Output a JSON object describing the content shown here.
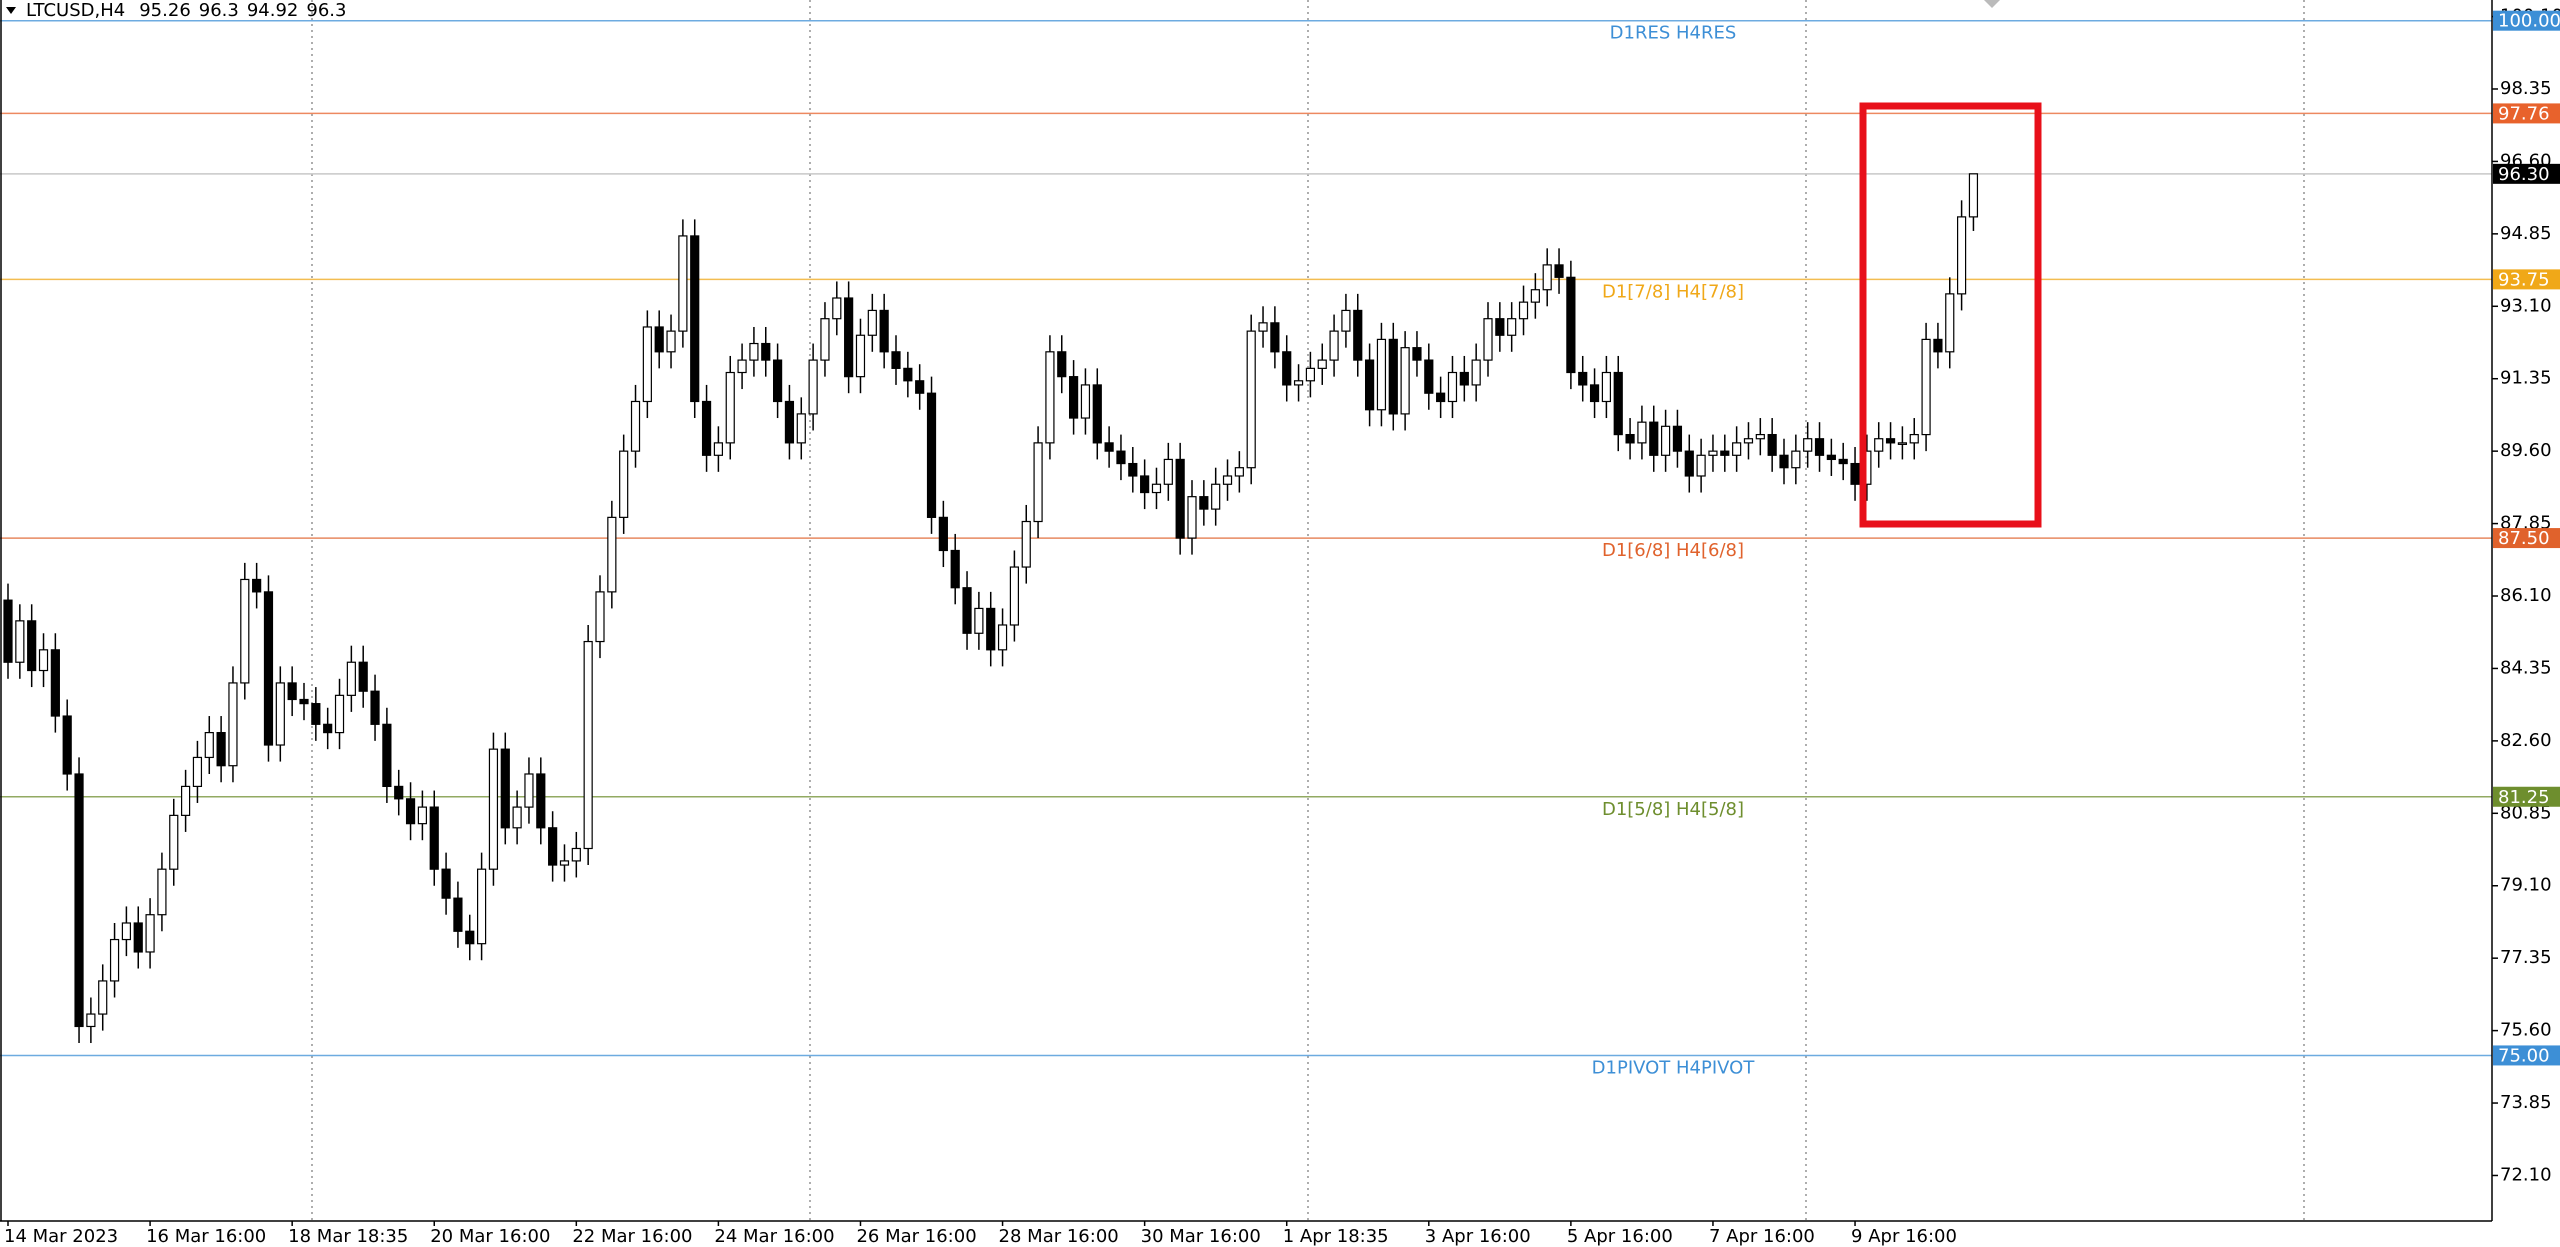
{
  "chart_data": {
    "type": "candlestick",
    "title": "LTCUSD,H4",
    "ylim": [
      71.0,
      100.5
    ],
    "yticks": [
      {
        "value": 72.1,
        "label": "72.10"
      },
      {
        "value": 73.85,
        "label": "73.85"
      },
      {
        "value": 75.6,
        "label": "75.60"
      },
      {
        "value": 77.35,
        "label": "77.35"
      },
      {
        "value": 79.1,
        "label": "79.10"
      },
      {
        "value": 80.85,
        "label": "80.85"
      },
      {
        "value": 82.6,
        "label": "82.60"
      },
      {
        "value": 84.35,
        "label": "84.35"
      },
      {
        "value": 86.1,
        "label": "86.10"
      },
      {
        "value": 87.85,
        "label": "87.85"
      },
      {
        "value": 89.6,
        "label": "89.60"
      },
      {
        "value": 91.35,
        "label": "91.35"
      },
      {
        "value": 93.1,
        "label": "93.10"
      },
      {
        "value": 94.85,
        "label": "94.85"
      },
      {
        "value": 96.6,
        "label": "96.60"
      },
      {
        "value": 98.35,
        "label": "98.35"
      },
      {
        "value": 100.1,
        "label": "100.10"
      }
    ],
    "up_color": "#ffffff",
    "down_color": "#000000",
    "levels": [
      {
        "value": 100,
        "label": "100.00",
        "text": "D1RES H4RES",
        "color": "#3d8fd6"
      },
      {
        "value": 97.76,
        "label": "97.76",
        "color": "#e8622c"
      },
      {
        "value": 96.3,
        "label": "96.30",
        "color": "#000000",
        "line_color": "#c8c8c8"
      },
      {
        "value": 93.75,
        "label": "93.75",
        "text": "D1[7/8] H4[7/8]",
        "color": "#f0a818"
      },
      {
        "value": 87.5,
        "label": "87.50",
        "text": "D1[6/8] H4[6/8]",
        "color": "#e0622c"
      },
      {
        "value": 81.25,
        "label": "81.25",
        "text": "D1[5/8] H4[5/8]",
        "color": "#6e8e2e"
      },
      {
        "value": 75,
        "label": "75.00",
        "text": "D1PIVOT H4PIVOT",
        "color": "#3d8fd6"
      }
    ],
    "categories": [
      "14 Mar 2023",
      null,
      null,
      null,
      null,
      null,
      null,
      null,
      null,
      null,
      null,
      null,
      "16 Mar 16:00",
      null,
      null,
      null,
      null,
      null,
      null,
      null,
      null,
      null,
      null,
      null,
      "18 Mar 18:35",
      null,
      null,
      null,
      null,
      null,
      null,
      null,
      null,
      null,
      null,
      null,
      "20 Mar 16:00",
      null,
      null,
      null,
      null,
      null,
      null,
      null,
      null,
      null,
      null,
      null,
      "22 Mar 16:00",
      null,
      null,
      null,
      null,
      null,
      null,
      null,
      null,
      null,
      null,
      null,
      "24 Mar 16:00",
      null,
      null,
      null,
      null,
      null,
      null,
      null,
      null,
      null,
      null,
      null,
      "26 Mar 16:00",
      null,
      null,
      null,
      null,
      null,
      null,
      null,
      null,
      null,
      null,
      null,
      "28 Mar 16:00",
      null,
      null,
      null,
      null,
      null,
      null,
      null,
      null,
      null,
      null,
      null,
      "30 Mar 16:00",
      null,
      null,
      null,
      null,
      null,
      null,
      null,
      null,
      null,
      null,
      null,
      "1 Apr 18:35",
      null,
      null,
      null,
      null,
      null,
      null,
      null,
      null,
      null,
      null,
      null,
      "3 Apr 16:00",
      null,
      null,
      null,
      null,
      null,
      null,
      null,
      null,
      null,
      null,
      null,
      "5 Apr 16:00",
      null,
      null,
      null,
      null,
      null,
      null,
      null,
      null,
      null,
      null,
      null,
      "7 Apr 16:00",
      null,
      null,
      null,
      null,
      null,
      null,
      null,
      null,
      null,
      null,
      null,
      "9 Apr 16:00",
      null,
      null,
      null,
      null,
      null,
      null,
      null,
      null,
      null,
      null
    ],
    "open": [
      86.0,
      84.5,
      85.5,
      84.3,
      84.8,
      83.2,
      81.8,
      75.7,
      76.0,
      76.8,
      77.8,
      78.2,
      77.5,
      78.4,
      79.5,
      80.8,
      81.5,
      82.2,
      82.8,
      82.0,
      84.0,
      86.5,
      86.2,
      82.5,
      84.0,
      83.6,
      83.5,
      83.0,
      82.8,
      83.7,
      84.5,
      83.8,
      83.0,
      81.5,
      81.2,
      80.6,
      81.0,
      79.5,
      78.8,
      78.0,
      77.7,
      79.5,
      82.4,
      80.5,
      81.0,
      81.8,
      80.5,
      79.6,
      79.7,
      80.0,
      85.0,
      86.2,
      88.0,
      89.6,
      90.8,
      92.6,
      92.0,
      92.5,
      94.8,
      90.8,
      89.5,
      89.8,
      91.5,
      91.8,
      92.2,
      91.8,
      90.8,
      89.8,
      90.5,
      91.8,
      92.8,
      93.3,
      91.4,
      92.4,
      93.0,
      92.0,
      91.6,
      91.3,
      91.0,
      88.0,
      87.2,
      86.3,
      85.2,
      85.8,
      84.8,
      85.4,
      86.8,
      87.9,
      89.8,
      92.0,
      91.4,
      90.4,
      91.2,
      89.8,
      89.6,
      89.3,
      89.0,
      88.6,
      88.8,
      89.4,
      87.5,
      88.5,
      88.2,
      88.8,
      89.0,
      89.2,
      92.5,
      92.7,
      92.0,
      91.2,
      91.3,
      91.6,
      91.8,
      92.5,
      93.0,
      91.8,
      90.6,
      92.3,
      90.5,
      92.1,
      91.8,
      91.0,
      90.8,
      91.5,
      91.2,
      91.8,
      92.8,
      92.4,
      92.8,
      93.2,
      93.5,
      94.1,
      93.8,
      91.5,
      91.2,
      90.8,
      91.5,
      90.0,
      89.8,
      90.3,
      89.5,
      90.2,
      89.6,
      89.0,
      89.5,
      89.6,
      89.5,
      89.8,
      89.9,
      90.0,
      89.5,
      89.2,
      89.6,
      89.9,
      89.5,
      89.4,
      89.3,
      88.8,
      89.6,
      89.9,
      89.8,
      89.8,
      90.0,
      92.3,
      92.0,
      93.4,
      95.26
    ],
    "high": [
      86.4,
      85.9,
      85.9,
      85.2,
      85.2,
      83.6,
      82.2,
      76.4,
      77.2,
      78.2,
      78.6,
      78.6,
      78.8,
      79.9,
      81.2,
      81.9,
      82.6,
      83.2,
      83.2,
      84.4,
      86.9,
      86.9,
      86.6,
      84.4,
      84.4,
      84.0,
      83.9,
      83.4,
      84.1,
      84.9,
      84.9,
      84.2,
      83.4,
      81.9,
      81.6,
      81.4,
      81.4,
      79.9,
      79.2,
      78.4,
      79.9,
      82.8,
      82.8,
      81.4,
      82.2,
      82.2,
      80.9,
      80.1,
      80.4,
      85.4,
      86.6,
      88.4,
      90.0,
      91.2,
      93.0,
      93.0,
      92.9,
      95.2,
      95.2,
      91.2,
      90.2,
      91.9,
      92.2,
      92.6,
      92.6,
      92.2,
      91.2,
      90.9,
      92.2,
      93.2,
      93.7,
      93.7,
      92.8,
      93.4,
      93.4,
      92.4,
      92.0,
      91.7,
      91.4,
      88.4,
      87.6,
      86.7,
      86.2,
      86.2,
      85.8,
      87.2,
      88.3,
      90.2,
      92.4,
      92.4,
      91.8,
      91.6,
      91.6,
      90.2,
      90.0,
      89.7,
      89.4,
      89.2,
      89.8,
      89.8,
      88.9,
      88.9,
      89.2,
      89.4,
      89.6,
      92.9,
      93.1,
      93.1,
      92.4,
      91.7,
      92.0,
      92.2,
      92.9,
      93.4,
      93.4,
      92.2,
      92.7,
      92.7,
      92.5,
      92.5,
      92.2,
      91.4,
      91.9,
      91.9,
      92.2,
      93.2,
      93.2,
      93.2,
      93.6,
      93.9,
      94.5,
      94.5,
      94.2,
      91.9,
      91.6,
      91.9,
      91.9,
      90.4,
      90.7,
      90.7,
      90.6,
      90.6,
      90.0,
      89.9,
      90.0,
      90.0,
      90.2,
      90.3,
      90.4,
      90.4,
      89.9,
      90.0,
      90.3,
      90.3,
      89.9,
      89.8,
      89.7,
      90.0,
      90.3,
      90.3,
      90.2,
      90.4,
      92.7,
      92.7,
      93.8,
      95.66,
      96.3
    ],
    "low": [
      84.1,
      84.1,
      83.9,
      83.9,
      82.8,
      81.4,
      75.3,
      75.3,
      75.6,
      76.4,
      77.4,
      77.1,
      77.1,
      78.0,
      79.1,
      80.4,
      81.1,
      81.8,
      81.6,
      81.6,
      83.6,
      85.8,
      82.1,
      82.1,
      83.2,
      83.1,
      82.6,
      82.4,
      82.4,
      83.3,
      83.4,
      82.6,
      81.1,
      80.8,
      80.2,
      80.2,
      79.1,
      78.4,
      77.6,
      77.3,
      77.3,
      79.1,
      80.1,
      80.1,
      80.6,
      80.1,
      79.2,
      79.2,
      79.3,
      79.6,
      84.6,
      85.8,
      87.6,
      89.2,
      90.4,
      91.6,
      91.6,
      92.1,
      90.4,
      89.1,
      89.1,
      89.4,
      91.1,
      91.4,
      91.4,
      90.4,
      89.4,
      89.4,
      90.1,
      91.4,
      92.4,
      91.0,
      91.0,
      92.0,
      91.6,
      91.2,
      90.9,
      90.6,
      87.6,
      86.8,
      85.9,
      84.8,
      84.8,
      84.4,
      84.4,
      85.0,
      86.4,
      87.5,
      89.4,
      91.0,
      90.0,
      90.0,
      89.4,
      89.2,
      88.9,
      88.6,
      88.2,
      88.2,
      88.4,
      87.1,
      87.1,
      87.8,
      87.8,
      88.4,
      88.6,
      88.8,
      92.1,
      91.6,
      90.8,
      90.8,
      90.9,
      91.2,
      91.4,
      92.1,
      91.4,
      90.2,
      90.2,
      90.1,
      90.1,
      91.4,
      90.6,
      90.4,
      90.4,
      90.8,
      90.8,
      91.4,
      92.0,
      92.0,
      92.4,
      92.8,
      93.1,
      93.4,
      91.1,
      90.8,
      90.4,
      90.4,
      89.6,
      89.4,
      89.4,
      89.1,
      89.1,
      89.2,
      88.6,
      88.6,
      89.1,
      89.1,
      89.1,
      89.4,
      89.5,
      89.1,
      88.8,
      88.8,
      89.2,
      89.1,
      89.0,
      88.9,
      88.4,
      88.4,
      89.2,
      89.4,
      89.4,
      89.4,
      89.6,
      91.6,
      91.6,
      93.0,
      94.92
    ],
    "close": [
      84.5,
      85.5,
      84.3,
      84.8,
      83.2,
      81.8,
      75.7,
      76.0,
      76.8,
      77.8,
      78.2,
      77.5,
      78.4,
      79.5,
      80.8,
      81.5,
      82.2,
      82.8,
      82.0,
      84.0,
      86.5,
      86.2,
      82.5,
      84.0,
      83.6,
      83.5,
      83.0,
      82.8,
      83.7,
      84.5,
      83.8,
      83.0,
      81.5,
      81.2,
      80.6,
      81.0,
      79.5,
      78.8,
      78.0,
      77.7,
      79.5,
      82.4,
      80.5,
      81.0,
      81.8,
      80.5,
      79.6,
      79.7,
      80.0,
      85.0,
      86.2,
      88.0,
      89.6,
      90.8,
      92.6,
      92.0,
      92.5,
      94.8,
      90.8,
      89.5,
      89.8,
      91.5,
      91.8,
      92.2,
      91.8,
      90.8,
      89.8,
      90.5,
      91.8,
      92.8,
      93.3,
      91.4,
      92.4,
      93.0,
      92.0,
      91.6,
      91.3,
      91.0,
      88.0,
      87.2,
      86.3,
      85.2,
      85.8,
      84.8,
      85.4,
      86.8,
      87.9,
      89.8,
      92.0,
      91.4,
      90.4,
      91.2,
      89.8,
      89.6,
      89.3,
      89.0,
      88.6,
      88.8,
      89.4,
      87.5,
      88.5,
      88.2,
      88.8,
      89.0,
      89.2,
      92.5,
      92.7,
      92.0,
      91.2,
      91.3,
      91.6,
      91.8,
      92.5,
      93.0,
      91.8,
      90.6,
      92.3,
      90.5,
      92.1,
      91.8,
      91.0,
      90.8,
      91.5,
      91.2,
      91.8,
      92.8,
      92.4,
      92.8,
      93.2,
      93.5,
      94.1,
      93.8,
      91.5,
      91.2,
      90.8,
      91.5,
      90.0,
      89.8,
      90.3,
      89.5,
      90.2,
      89.6,
      89.0,
      89.5,
      89.6,
      89.5,
      89.8,
      89.9,
      90.0,
      89.5,
      89.2,
      89.6,
      89.9,
      89.5,
      89.4,
      89.3,
      88.8,
      89.6,
      89.9,
      89.8,
      89.8,
      90.0,
      92.3,
      92.0,
      93.4,
      95.26,
      96.3
    ]
  }
}
